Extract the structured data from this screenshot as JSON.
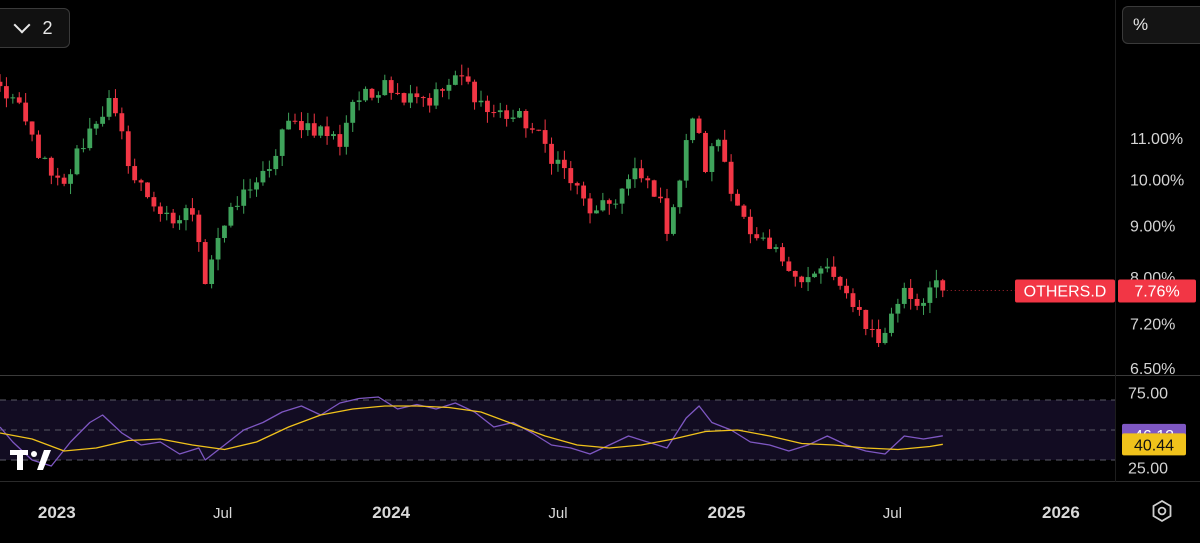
{
  "toolbar": {
    "collapse_count": "2",
    "scale_mode": "%"
  },
  "colors": {
    "up": "#26a69a",
    "up_candle": "#3fa35b",
    "down": "#f23645",
    "rsi": "#7e57c2",
    "rsi_ma": "#f0c21b",
    "band": "#120c22"
  },
  "chart_data": [
    {
      "type": "candlestick",
      "title": "",
      "symbol": "OTHERS.D",
      "last_value": 7.76,
      "last_value_label": "7.76%",
      "y_scale": "log",
      "ylim": [
        6.5,
        12.4
      ],
      "y_ticks": [
        {
          "value": 11.0,
          "label": "11.00%"
        },
        {
          "value": 10.0,
          "label": "10.00%"
        },
        {
          "value": 9.0,
          "label": "9.00%"
        },
        {
          "value": 8.0,
          "label": "8.00%"
        },
        {
          "value": 7.2,
          "label": "7.20%"
        },
        {
          "value": 6.5,
          "label": "6.50%"
        }
      ],
      "x_start": "2022-10-31",
      "x_end": "2026-03-01",
      "x_ticks": [
        {
          "date": "2023-01-01",
          "label": "2023",
          "bold": true
        },
        {
          "date": "2023-07-01",
          "label": "Jul",
          "bold": false
        },
        {
          "date": "2024-01-01",
          "label": "2024",
          "bold": true
        },
        {
          "date": "2024-07-01",
          "label": "Jul",
          "bold": false
        },
        {
          "date": "2025-01-01",
          "label": "2025",
          "bold": true
        },
        {
          "date": "2025-07-01",
          "label": "Jul",
          "bold": false
        },
        {
          "date": "2026-01-01",
          "label": "2026",
          "bold": true
        }
      ],
      "interval": "weekly",
      "close_path": [
        [
          "2022-10-31",
          12.3
        ],
        [
          "2022-11-14",
          12.0
        ],
        [
          "2022-12-05",
          11.0
        ],
        [
          "2022-12-26",
          10.0
        ],
        [
          "2023-01-09",
          9.8
        ],
        [
          "2023-01-23",
          10.6
        ],
        [
          "2023-02-13",
          11.5
        ],
        [
          "2023-02-27",
          11.9
        ],
        [
          "2023-03-13",
          11.0
        ],
        [
          "2023-03-27",
          10.0
        ],
        [
          "2023-04-17",
          9.5
        ],
        [
          "2023-05-08",
          8.9
        ],
        [
          "2023-05-22",
          9.4
        ],
        [
          "2023-06-05",
          8.8
        ],
        [
          "2023-06-12",
          8.0
        ],
        [
          "2023-06-26",
          8.8
        ],
        [
          "2023-07-10",
          9.2
        ],
        [
          "2023-07-31",
          9.9
        ],
        [
          "2023-08-21",
          10.1
        ],
        [
          "2023-09-04",
          11.2
        ],
        [
          "2023-09-25",
          11.4
        ],
        [
          "2023-10-16",
          11.2
        ],
        [
          "2023-11-06",
          10.9
        ],
        [
          "2023-11-20",
          12.0
        ],
        [
          "2023-12-11",
          12.1
        ],
        [
          "2023-12-25",
          12.7
        ],
        [
          "2024-01-08",
          12.1
        ],
        [
          "2024-01-22",
          12.3
        ],
        [
          "2024-02-12",
          12.0
        ],
        [
          "2024-03-04",
          12.4
        ],
        [
          "2024-03-18",
          12.6
        ],
        [
          "2024-04-01",
          12.2
        ],
        [
          "2024-04-15",
          11.7
        ],
        [
          "2024-05-06",
          11.6
        ],
        [
          "2024-05-27",
          11.4
        ],
        [
          "2024-06-17",
          10.8
        ],
        [
          "2024-07-08",
          10.2
        ],
        [
          "2024-07-29",
          9.5
        ],
        [
          "2024-08-12",
          9.2
        ],
        [
          "2024-09-02",
          9.6
        ],
        [
          "2024-09-23",
          10.1
        ],
        [
          "2024-10-14",
          9.8
        ],
        [
          "2024-10-28",
          9.0
        ],
        [
          "2024-11-11",
          10.0
        ],
        [
          "2024-11-25",
          11.6
        ],
        [
          "2024-12-09",
          10.3
        ],
        [
          "2024-12-23",
          11.0
        ],
        [
          "2025-01-06",
          9.9
        ],
        [
          "2025-01-27",
          8.7
        ],
        [
          "2025-02-17",
          8.5
        ],
        [
          "2025-03-10",
          8.3
        ],
        [
          "2025-03-24",
          7.9
        ],
        [
          "2025-04-07",
          8.0
        ],
        [
          "2025-04-21",
          8.2
        ],
        [
          "2025-05-05",
          7.7
        ],
        [
          "2025-05-19",
          7.6
        ],
        [
          "2025-06-02",
          7.2
        ],
        [
          "2025-06-16",
          6.9
        ],
        [
          "2025-06-30",
          7.3
        ],
        [
          "2025-07-14",
          7.85
        ],
        [
          "2025-07-28",
          7.55
        ],
        [
          "2025-08-11",
          7.8
        ],
        [
          "2025-08-25",
          7.76
        ]
      ]
    },
    {
      "type": "line",
      "title": "",
      "ylim": [
        25,
        75
      ],
      "y_ticks": [
        {
          "value": 75,
          "label": "75.00"
        },
        {
          "value": 50,
          "label": "50.00"
        },
        {
          "value": 25,
          "label": "25.00"
        }
      ],
      "band": [
        30,
        70
      ],
      "dashed_levels": [
        70,
        50,
        30
      ],
      "series": [
        {
          "color_key": "rsi",
          "last_label": "46.12",
          "points": [
            [
              "2022-10-31",
              52
            ],
            [
              "2022-11-14",
              42
            ],
            [
              "2022-12-05",
              30
            ],
            [
              "2022-12-26",
              26
            ],
            [
              "2023-01-16",
              42
            ],
            [
              "2023-02-06",
              55
            ],
            [
              "2023-02-20",
              60
            ],
            [
              "2023-03-13",
              48
            ],
            [
              "2023-04-03",
              40
            ],
            [
              "2023-04-24",
              42
            ],
            [
              "2023-05-15",
              34
            ],
            [
              "2023-06-05",
              38
            ],
            [
              "2023-06-12",
              30
            ],
            [
              "2023-07-03",
              40
            ],
            [
              "2023-07-24",
              50
            ],
            [
              "2023-08-14",
              55
            ],
            [
              "2023-09-04",
              62
            ],
            [
              "2023-09-25",
              66
            ],
            [
              "2023-10-16",
              60
            ],
            [
              "2023-11-06",
              68
            ],
            [
              "2023-11-27",
              71
            ],
            [
              "2023-12-18",
              72
            ],
            [
              "2024-01-08",
              64
            ],
            [
              "2024-01-29",
              67
            ],
            [
              "2024-02-19",
              64
            ],
            [
              "2024-03-11",
              68
            ],
            [
              "2024-04-01",
              62
            ],
            [
              "2024-04-22",
              52
            ],
            [
              "2024-05-13",
              55
            ],
            [
              "2024-06-03",
              48
            ],
            [
              "2024-06-24",
              40
            ],
            [
              "2024-07-15",
              38
            ],
            [
              "2024-08-05",
              34
            ],
            [
              "2024-08-26",
              40
            ],
            [
              "2024-09-16",
              46
            ],
            [
              "2024-10-07",
              42
            ],
            [
              "2024-10-28",
              38
            ],
            [
              "2024-11-18",
              58
            ],
            [
              "2024-12-02",
              66
            ],
            [
              "2024-12-16",
              55
            ],
            [
              "2025-01-06",
              50
            ],
            [
              "2025-01-27",
              42
            ],
            [
              "2025-02-17",
              40
            ],
            [
              "2025-03-10",
              36
            ],
            [
              "2025-03-31",
              40
            ],
            [
              "2025-04-21",
              46
            ],
            [
              "2025-05-12",
              40
            ],
            [
              "2025-06-02",
              36
            ],
            [
              "2025-06-23",
              34
            ],
            [
              "2025-07-14",
              46
            ],
            [
              "2025-08-04",
              44
            ],
            [
              "2025-08-25",
              46.12
            ]
          ]
        },
        {
          "color_key": "rsi_ma",
          "last_label": "40.44",
          "points": [
            [
              "2022-10-31",
              48
            ],
            [
              "2022-12-05",
              44
            ],
            [
              "2023-01-09",
              36
            ],
            [
              "2023-02-13",
              38
            ],
            [
              "2023-03-20",
              43
            ],
            [
              "2023-04-24",
              44
            ],
            [
              "2023-05-29",
              40
            ],
            [
              "2023-07-03",
              37
            ],
            [
              "2023-08-07",
              42
            ],
            [
              "2023-09-11",
              52
            ],
            [
              "2023-10-16",
              60
            ],
            [
              "2023-11-20",
              64
            ],
            [
              "2023-12-25",
              66
            ],
            [
              "2024-01-29",
              66
            ],
            [
              "2024-03-04",
              65
            ],
            [
              "2024-04-08",
              62
            ],
            [
              "2024-05-13",
              54
            ],
            [
              "2024-06-17",
              46
            ],
            [
              "2024-07-22",
              40
            ],
            [
              "2024-08-26",
              38
            ],
            [
              "2024-09-30",
              40
            ],
            [
              "2024-11-04",
              44
            ],
            [
              "2024-12-09",
              49
            ],
            [
              "2025-01-13",
              50
            ],
            [
              "2025-02-17",
              46
            ],
            [
              "2025-03-24",
              41
            ],
            [
              "2025-04-28",
              40
            ],
            [
              "2025-06-02",
              38
            ],
            [
              "2025-07-07",
              37
            ],
            [
              "2025-08-11",
              39
            ],
            [
              "2025-08-25",
              40.44
            ]
          ]
        }
      ]
    }
  ]
}
